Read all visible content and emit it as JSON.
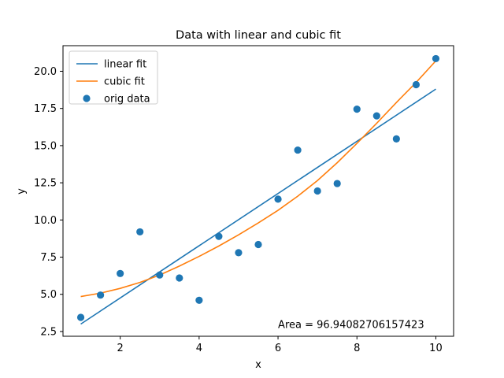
{
  "chart_data": {
    "type": "scatter",
    "title": "Data with linear and cubic fit",
    "xlabel": "x",
    "ylabel": "y",
    "xlim": [
      0.55,
      10.45
    ],
    "ylim": [
      2.18,
      21.72
    ],
    "xticks": [
      2,
      4,
      6,
      8,
      10
    ],
    "xtick_labels": [
      "2",
      "4",
      "6",
      "8",
      "10"
    ],
    "yticks": [
      2.5,
      5.0,
      7.5,
      10.0,
      12.5,
      15.0,
      17.5,
      20.0
    ],
    "ytick_labels": [
      "2.5",
      "5.0",
      "7.5",
      "10.0",
      "12.5",
      "15.0",
      "17.5",
      "20.0"
    ],
    "grid": false,
    "legend": {
      "position": "top-left",
      "entries": [
        "linear fit",
        "cubic fit",
        "orig data"
      ]
    },
    "series": [
      {
        "name": "linear fit",
        "kind": "line",
        "color": "#1f77b4",
        "x": [
          1,
          10
        ],
        "y": [
          3.0,
          18.8
        ]
      },
      {
        "name": "cubic fit",
        "kind": "line",
        "color": "#ff7f0e",
        "x": [
          1.0,
          1.5,
          2.0,
          2.5,
          3.0,
          3.5,
          4.0,
          4.5,
          5.0,
          5.5,
          6.0,
          6.5,
          7.0,
          7.5,
          8.0,
          8.5,
          9.0,
          9.5,
          10.0
        ],
        "y": [
          4.85,
          5.08,
          5.4,
          5.8,
          6.3,
          6.9,
          7.55,
          8.25,
          9.0,
          9.8,
          10.65,
          11.6,
          12.65,
          13.85,
          15.15,
          16.5,
          17.9,
          19.25,
          20.7
        ]
      },
      {
        "name": "orig data",
        "kind": "scatter",
        "color": "#1f77b4",
        "x": [
          1.0,
          1.5,
          2.0,
          2.5,
          3.0,
          3.5,
          4.0,
          4.5,
          5.0,
          5.5,
          6.0,
          6.5,
          7.0,
          7.5,
          8.0,
          8.5,
          9.0,
          9.5,
          10.0
        ],
        "y": [
          3.45,
          4.95,
          6.4,
          9.2,
          6.3,
          6.1,
          4.6,
          8.9,
          7.8,
          8.35,
          11.4,
          14.7,
          11.95,
          12.45,
          17.45,
          17.0,
          15.45,
          19.1,
          20.85
        ]
      }
    ],
    "annotations": [
      {
        "text": "Area = 96.94082706157423",
        "x": 6.0,
        "y": 3.0
      }
    ]
  }
}
